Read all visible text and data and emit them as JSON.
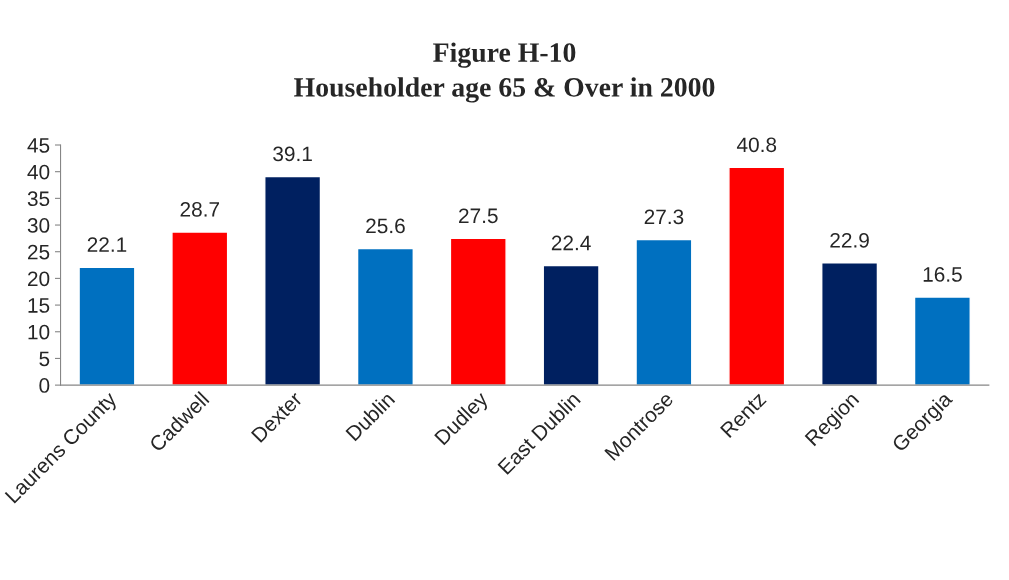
{
  "chart_data": {
    "type": "bar",
    "title": "Figure H-10",
    "subtitle": "Householder age 65 & Over in 2000",
    "categories": [
      "Laurens County",
      "Cadwell",
      "Dexter",
      "Dublin",
      "Dudley",
      "East Dublin",
      "Montrose",
      "Rentz",
      "Region",
      "Georgia"
    ],
    "values": [
      22.1,
      28.7,
      39.1,
      25.6,
      27.5,
      22.4,
      27.3,
      40.8,
      22.9,
      16.5
    ],
    "colors": [
      "#0070c0",
      "#ff0000",
      "#002060",
      "#0070c0",
      "#ff0000",
      "#002060",
      "#0070c0",
      "#ff0000",
      "#002060",
      "#0070c0"
    ],
    "ylim": [
      0,
      45
    ],
    "yticks": [
      0,
      5,
      10,
      15,
      20,
      25,
      30,
      35,
      40,
      45
    ],
    "data_labels": true,
    "grid": false,
    "legend": false
  }
}
